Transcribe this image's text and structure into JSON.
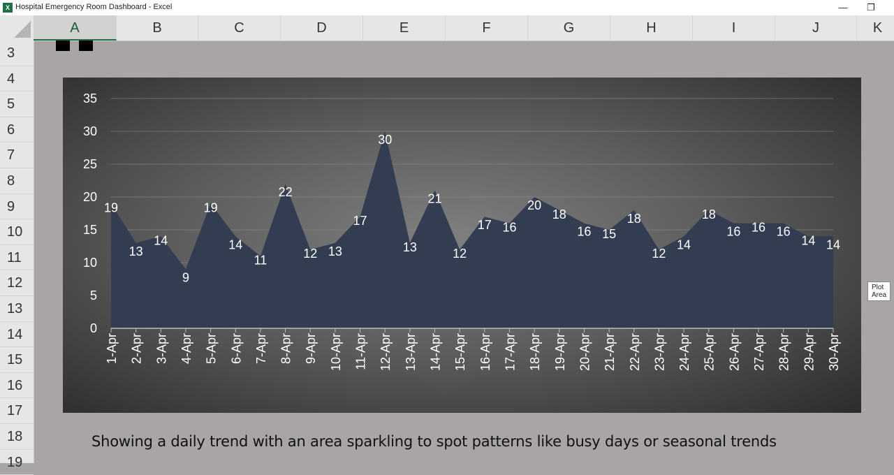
{
  "window": {
    "title": "Hospital Emergency Room Dashboard - Excel",
    "app_icon": "X",
    "minimize_glyph": "—",
    "restore_glyph": "❐"
  },
  "columns": [
    "A",
    "B",
    "C",
    "D",
    "E",
    "F",
    "G",
    "H",
    "I",
    "J",
    "K"
  ],
  "selected_column": "A",
  "rows": [
    "3",
    "4",
    "5",
    "6",
    "7",
    "8",
    "9",
    "10",
    "11",
    "12",
    "13",
    "14",
    "15",
    "16",
    "17",
    "18",
    "19"
  ],
  "tooltip": "Plot Area",
  "caption": "Showing a daily trend with an area sparkling to spot patterns like busy days or seasonal trends",
  "chart_data": {
    "type": "area",
    "categories": [
      "1-Apr",
      "2-Apr",
      "3-Apr",
      "4-Apr",
      "5-Apr",
      "6-Apr",
      "7-Apr",
      "8-Apr",
      "9-Apr",
      "10-Apr",
      "11-Apr",
      "12-Apr",
      "13-Apr",
      "14-Apr",
      "15-Apr",
      "16-Apr",
      "17-Apr",
      "18-Apr",
      "19-Apr",
      "20-Apr",
      "21-Apr",
      "22-Apr",
      "23-Apr",
      "24-Apr",
      "25-Apr",
      "26-Apr",
      "27-Apr",
      "28-Apr",
      "29-Apr",
      "30-Apr"
    ],
    "values": [
      19,
      13,
      14,
      9,
      19,
      14,
      11,
      22,
      12,
      13,
      17,
      30,
      13,
      21,
      12,
      17,
      16,
      20,
      18,
      16,
      15,
      18,
      12,
      14,
      18,
      16,
      16,
      16,
      14,
      14
    ],
    "yticks": [
      0,
      5,
      10,
      15,
      20,
      25,
      30,
      35
    ],
    "ylim": [
      0,
      35
    ],
    "grid": true,
    "legend": "none",
    "colors": {
      "area": "#333d52",
      "gridline": "#8a8a8a",
      "text": "#ffffff"
    }
  }
}
